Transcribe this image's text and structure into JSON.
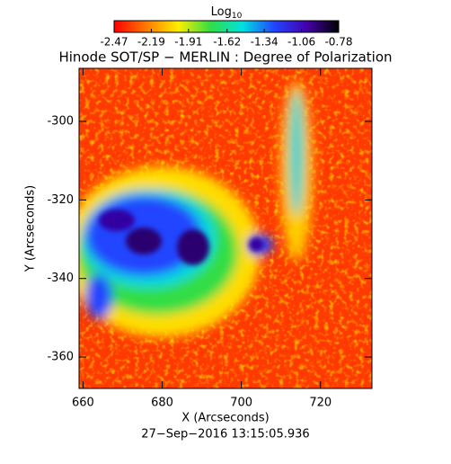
{
  "chart_data": {
    "type": "image-map",
    "title": "Hinode SOT/SP − MERLIN : Degree of Polarization",
    "colorbar_label": "Log",
    "colorbar_label_sub": "10",
    "clim": [
      -2.47,
      -0.78
    ],
    "cticks": [
      -2.47,
      -2.19,
      -1.91,
      -1.62,
      -1.34,
      -1.06,
      -0.78
    ],
    "colormap": [
      "#ff0000",
      "#ff7a00",
      "#ffee00",
      "#33dd44",
      "#00e0e0",
      "#2244ff",
      "#4400aa",
      "#000000"
    ],
    "x_label": "X (Arcseconds)",
    "y_label": "Y (Arcseconds)",
    "xlim": [
      659,
      733
    ],
    "xticks": [
      660,
      680,
      700,
      720
    ],
    "ylim": [
      -368,
      -286.5
    ],
    "yticks": [
      -300,
      -320,
      -340,
      -360
    ],
    "footer": "27−Sep−2016 13:15:05.936"
  }
}
